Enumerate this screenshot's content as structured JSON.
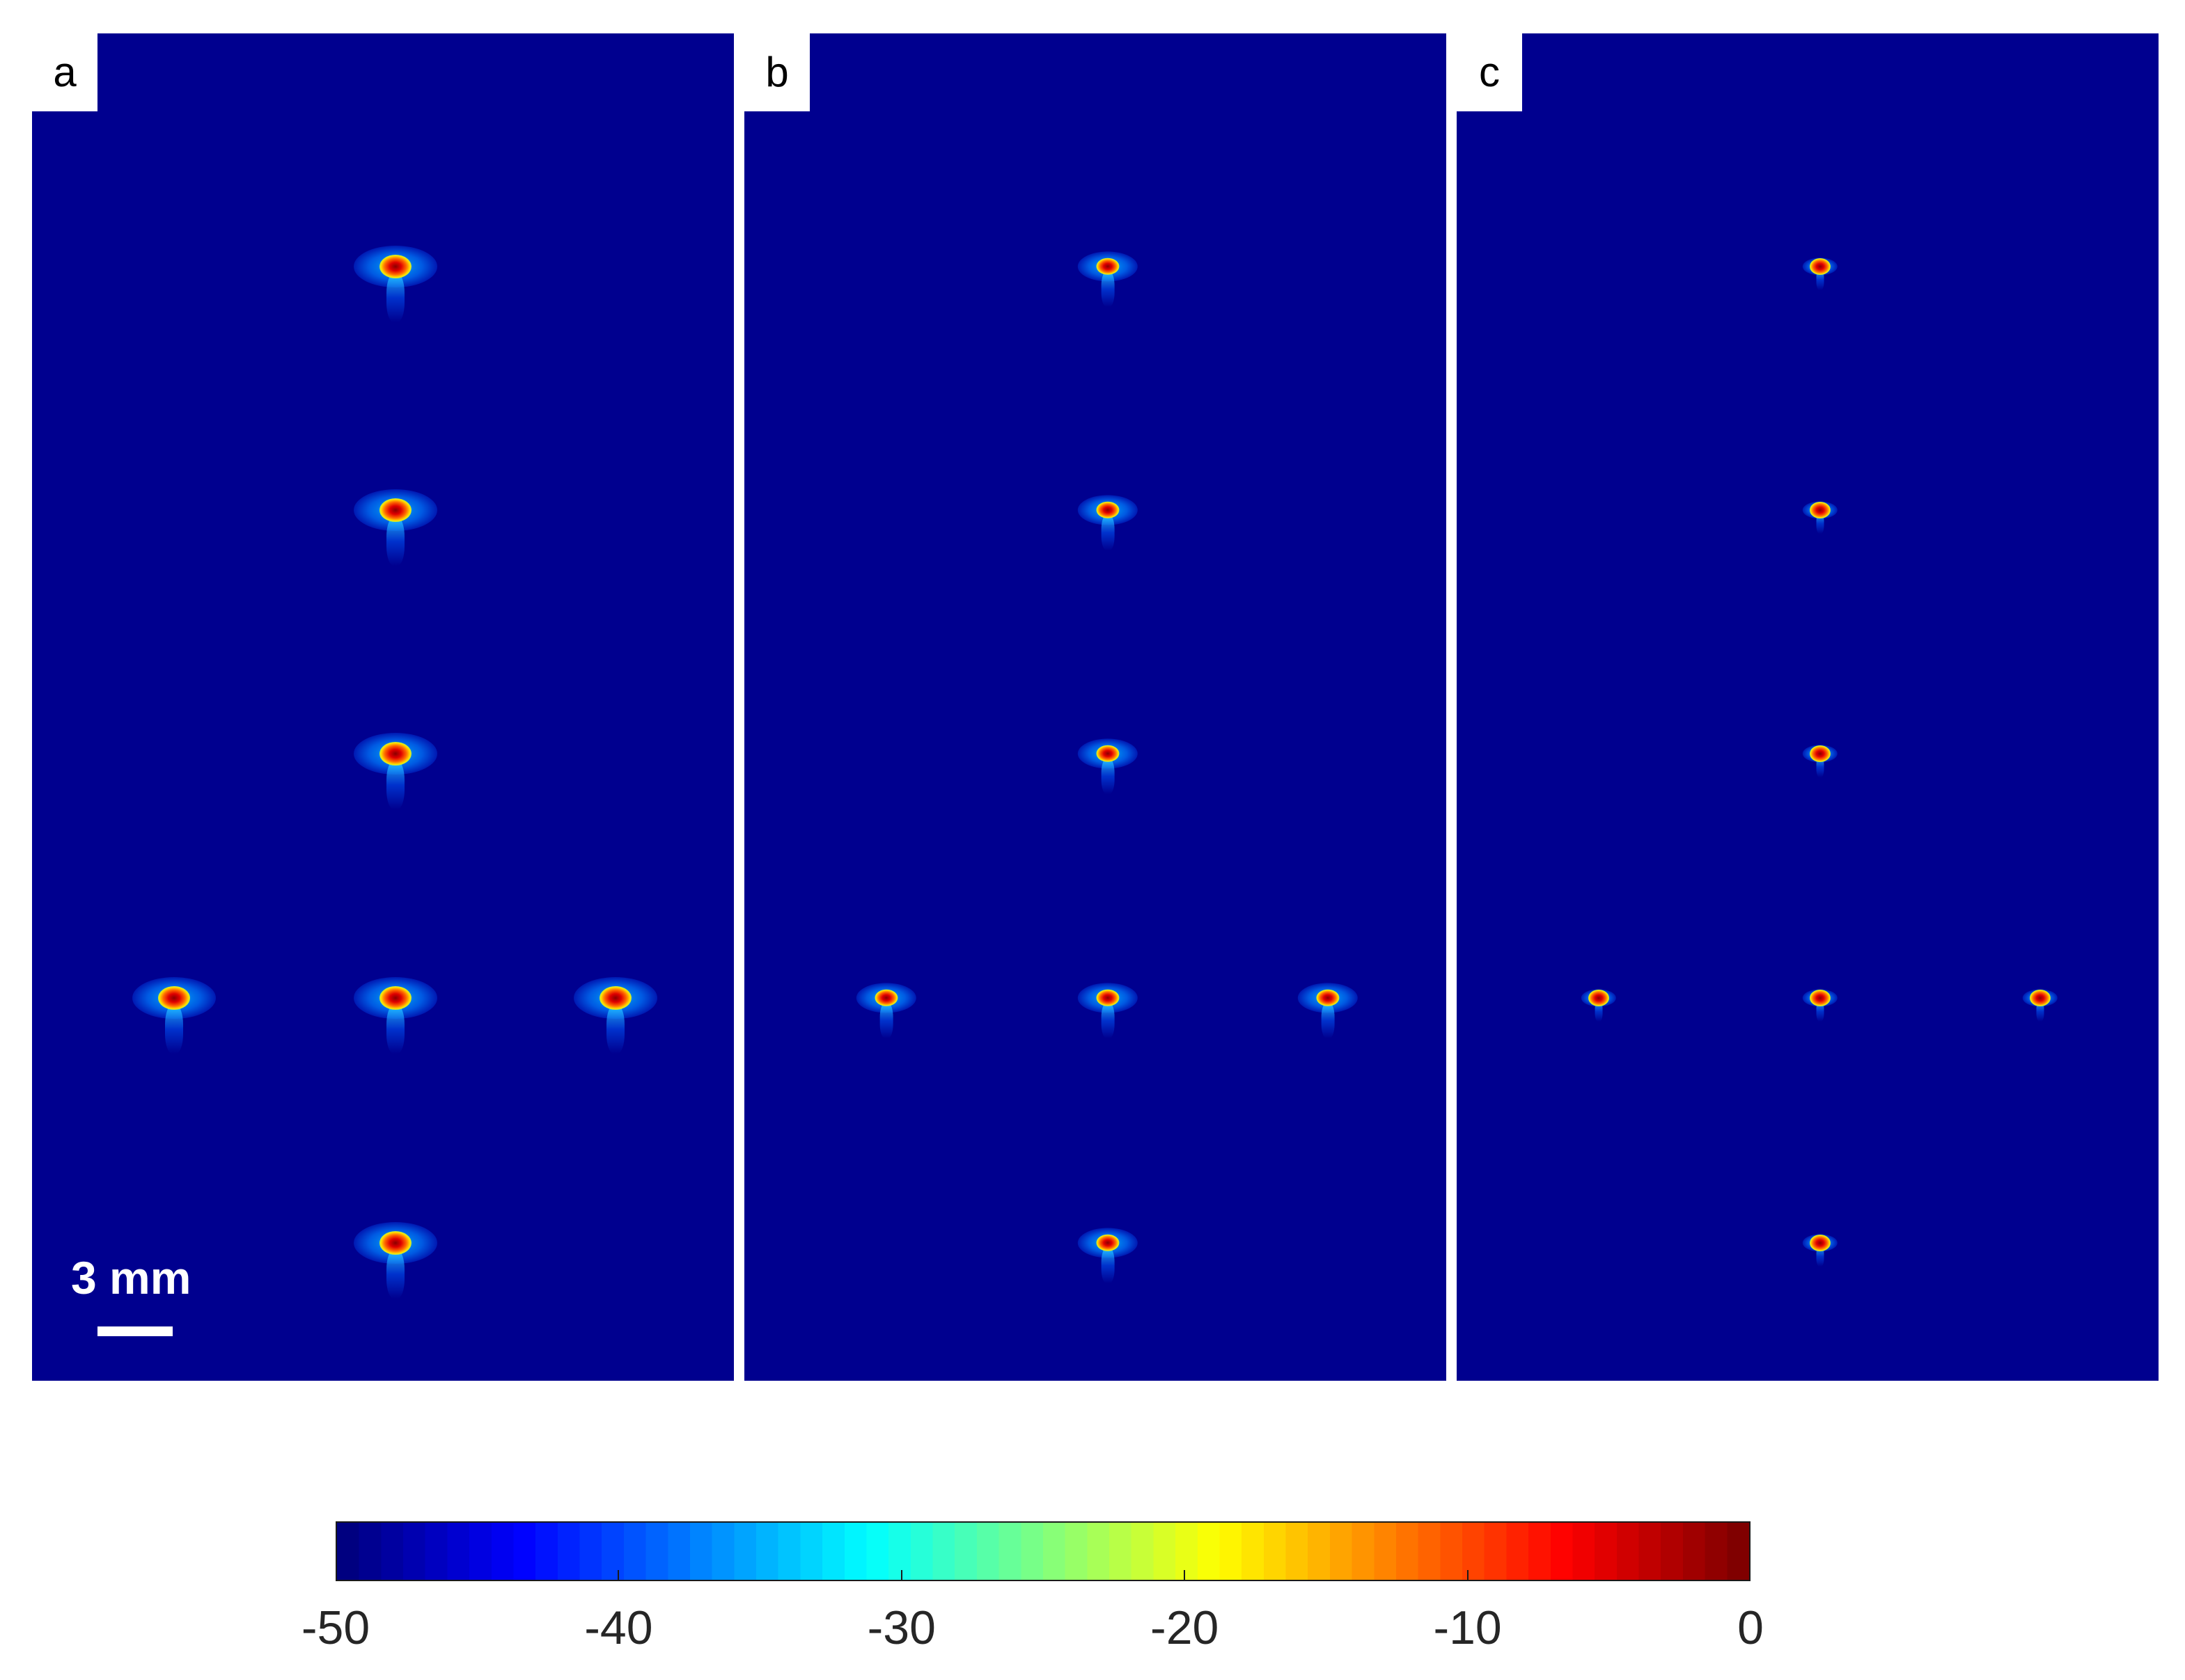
{
  "panels": [
    {
      "label": "a",
      "targets": [
        {
          "row": 1,
          "col": 0,
          "size": 1.0
        },
        {
          "row": 2,
          "col": 0,
          "size": 1.0
        },
        {
          "row": 3,
          "col": 0,
          "size": 1.0
        },
        {
          "row": 4,
          "col": -1,
          "size": 1.0
        },
        {
          "row": 4,
          "col": 0,
          "size": 1.0
        },
        {
          "row": 4,
          "col": 1,
          "size": 1.0
        },
        {
          "row": 5,
          "col": 0,
          "size": 1.0
        }
      ]
    },
    {
      "label": "b",
      "targets": [
        {
          "row": 1,
          "col": 0,
          "size": 0.72
        },
        {
          "row": 2,
          "col": 0,
          "size": 0.72
        },
        {
          "row": 3,
          "col": 0,
          "size": 0.72
        },
        {
          "row": 4,
          "col": -1,
          "size": 0.72
        },
        {
          "row": 4,
          "col": 0,
          "size": 0.72
        },
        {
          "row": 4,
          "col": 1,
          "size": 0.72
        },
        {
          "row": 5,
          "col": 0,
          "size": 0.72
        }
      ]
    },
    {
      "label": "c",
      "targets": [
        {
          "row": 1,
          "col": 0,
          "size": 0.42
        },
        {
          "row": 2,
          "col": 0,
          "size": 0.42
        },
        {
          "row": 3,
          "col": 0,
          "size": 0.42
        },
        {
          "row": 4,
          "col": -1,
          "size": 0.42
        },
        {
          "row": 4,
          "col": 0,
          "size": 0.42
        },
        {
          "row": 4,
          "col": 1,
          "size": 0.42
        },
        {
          "row": 5,
          "col": 0,
          "size": 0.42
        }
      ]
    }
  ],
  "scale_bar": {
    "label": "3 mm"
  },
  "colorbar": {
    "min": -50,
    "max": 0,
    "ticks": [
      "-50",
      "-40",
      "-30",
      "-20",
      "-10",
      "0"
    ],
    "colormap": "jet",
    "background_color": "#00008f"
  }
}
